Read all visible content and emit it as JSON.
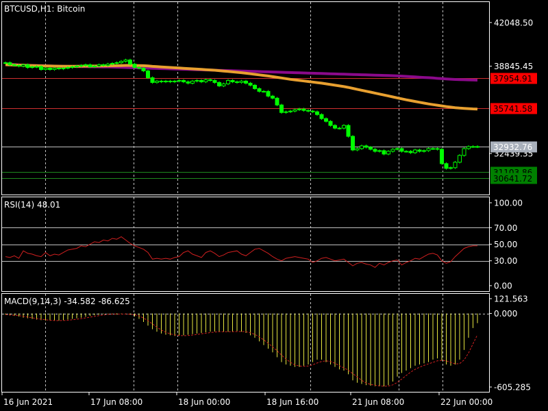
{
  "symbol": {
    "name": "BTCUSD",
    "timeframe": "H1",
    "description": "Bitcoin"
  },
  "colors": {
    "background": "#000000",
    "grid": "#c0c0c0",
    "bull": "#00ff00",
    "bear": "#00ff00",
    "ma_slow": "#8b0a8b",
    "ma_fast": "#e8a030",
    "resistance": "#d03030",
    "support": "#1e8a1e",
    "indicator": "#d02020",
    "macd_hist": "#e6e640",
    "tag_red": "#ff0000",
    "tag_green": "#008000",
    "tag_gray": "#a9b0bb"
  },
  "price_panel": {
    "axis_labels": [
      {
        "value": 42048.5,
        "label": "42048.50"
      },
      {
        "value": 38845.45,
        "label": "38845.45"
      },
      {
        "value": 32439.35,
        "label": "32439.35"
      }
    ],
    "ylim": [
      29430,
      43550
    ],
    "levels": [
      {
        "value": 37954.91,
        "label": "37954.91",
        "kind": "resistance"
      },
      {
        "value": 35741.58,
        "label": "35741.58",
        "kind": "resistance"
      },
      {
        "value": 32932.76,
        "label": "32932.76",
        "kind": "current"
      },
      {
        "value": 31103.86,
        "label": "31103.86",
        "kind": "support"
      },
      {
        "value": 30641.72,
        "label": "30641.72",
        "kind": "support"
      }
    ]
  },
  "rsi_panel": {
    "label": "RSI(14) 48.01",
    "axis_labels": [
      {
        "value": 100,
        "label": "100.00"
      },
      {
        "value": 70,
        "label": "70.00"
      },
      {
        "value": 50,
        "label": "50.00"
      },
      {
        "value": 30,
        "label": "30.00"
      },
      {
        "value": 0,
        "label": "0.00"
      }
    ],
    "levels": [
      70,
      50,
      30
    ]
  },
  "macd_panel": {
    "label": "MACD(9,14,3) -34.582 -86.625",
    "axis_labels": [
      {
        "value": 121.563,
        "label": "121.563"
      },
      {
        "value": 0,
        "label": "0.000"
      },
      {
        "value": -605.285,
        "label": "-605.285"
      }
    ]
  },
  "time_labels": [
    "16 Jun 2021",
    "17 Jun 08:00",
    "18 Jun 00:00",
    "18 Jun 16:00",
    "21 Jun 08:00",
    "22 Jun 00:00"
  ],
  "chart_data": {
    "type": "candlestick",
    "title": "BTCUSD,H1:  Bitcoin",
    "close": [
      39100,
      38950,
      38900,
      38850,
      38950,
      38750,
      38800,
      38820,
      38600,
      38700,
      38600,
      38700,
      38650,
      38700,
      38750,
      38800,
      38850,
      38900,
      38950,
      38800,
      38850,
      38950,
      38900,
      39000,
      39050,
      39100,
      39200,
      39300,
      39000,
      38750,
      38700,
      38500,
      38000,
      37650,
      37750,
      37700,
      37750,
      37700,
      37750,
      37800,
      37700,
      37600,
      37750,
      37800,
      37700,
      37850,
      37800,
      37650,
      37400,
      37550,
      37800,
      37700,
      37650,
      37750,
      37600,
      37450,
      37200,
      37000,
      37000,
      36650,
      36500,
      36000,
      35450,
      35500,
      35550,
      35650,
      35700,
      35600,
      35550,
      35500,
      35300,
      35000,
      34800,
      34500,
      34300,
      34300,
      34500,
      33700,
      32700,
      32800,
      33000,
      32900,
      32750,
      32600,
      32650,
      32400,
      32600,
      32750,
      32800,
      32600,
      32600,
      32500,
      32700,
      32600,
      32650,
      32800,
      32800,
      32750,
      31700,
      31350,
      31400,
      31800,
      32300,
      32800,
      32950,
      32950,
      32930
    ],
    "ma_slow": [
      39000,
      38980,
      38960,
      38940,
      38920,
      38910,
      38900,
      38890,
      38880,
      38870,
      38860,
      38850,
      38840,
      38835,
      38830,
      38825,
      38820,
      38815,
      38810,
      38805,
      38800,
      38795,
      38790,
      38785,
      38780,
      38770,
      38760,
      38750,
      38740,
      38730,
      38720,
      38710,
      38700,
      38690,
      38680,
      38670,
      38660,
      38650,
      38640,
      38630,
      38620,
      38610,
      38600,
      38590,
      38580,
      38570,
      38560,
      38550,
      38540,
      38530,
      38520,
      38510,
      38500,
      38490,
      38480,
      38470,
      38460,
      38450,
      38440,
      38430,
      38420,
      38410,
      38400,
      38390,
      38380,
      38370,
      38360,
      38350,
      38340,
      38330,
      38320,
      38310,
      38300,
      38290,
      38280,
      38270,
      38260,
      38250,
      38240,
      38230,
      38220,
      38210,
      38200,
      38190,
      38180,
      38170,
      38160,
      38150,
      38140,
      38120,
      38100,
      38080,
      38060,
      38040,
      38020,
      38000,
      37980,
      37950,
      37930,
      37910,
      37890,
      37870,
      37860,
      37850,
      37840,
      37830,
      37820
    ],
    "ma_fast": [
      38950,
      38940,
      38930,
      38920,
      38910,
      38900,
      38890,
      38880,
      38870,
      38860,
      38855,
      38850,
      38845,
      38840,
      38840,
      38840,
      38840,
      38845,
      38850,
      38850,
      38855,
      38860,
      38865,
      38870,
      38875,
      38880,
      38890,
      38900,
      38900,
      38895,
      38890,
      38880,
      38860,
      38830,
      38810,
      38790,
      38770,
      38750,
      38730,
      38710,
      38690,
      38670,
      38650,
      38630,
      38610,
      38590,
      38570,
      38550,
      38520,
      38490,
      38460,
      38430,
      38400,
      38370,
      38330,
      38290,
      38250,
      38210,
      38170,
      38130,
      38080,
      38030,
      37980,
      37930,
      37880,
      37840,
      37800,
      37760,
      37720,
      37680,
      37640,
      37600,
      37550,
      37500,
      37450,
      37400,
      37350,
      37290,
      37220,
      37150,
      37080,
      37010,
      36940,
      36870,
      36800,
      36730,
      36660,
      36590,
      36520,
      36450,
      36380,
      36320,
      36260,
      36200,
      36140,
      36080,
      36030,
      35980,
      35930,
      35880,
      35840,
      35800,
      35770,
      35750,
      35730,
      35710,
      35700
    ],
    "rsi": [
      35,
      34,
      36,
      33,
      42,
      39,
      38,
      36,
      35,
      40,
      36,
      38,
      37,
      40,
      43,
      44,
      45,
      48,
      47,
      50,
      53,
      52,
      55,
      54,
      57,
      56,
      59,
      55,
      51,
      48,
      46,
      44,
      40,
      32,
      33,
      32,
      33,
      32,
      34,
      35,
      40,
      42,
      38,
      36,
      34,
      40,
      42,
      39,
      35,
      37,
      40,
      41,
      42,
      38,
      36,
      40,
      44,
      45,
      42,
      39,
      35,
      32,
      30,
      33,
      34,
      35,
      34,
      33,
      32,
      28,
      30,
      33,
      34,
      32,
      30,
      31,
      32,
      28,
      24,
      27,
      28,
      26,
      25,
      22,
      27,
      25,
      28,
      30,
      31,
      25,
      28,
      30,
      33,
      32,
      35,
      38,
      39,
      37,
      30,
      27,
      29,
      35,
      40,
      45,
      47,
      48,
      48
    ],
    "macd_hist": [
      -10,
      -15,
      -20,
      -25,
      -35,
      -40,
      -45,
      -50,
      -55,
      -58,
      -60,
      -60,
      -58,
      -55,
      -50,
      -45,
      -40,
      -35,
      -28,
      -20,
      -15,
      -10,
      -5,
      -3,
      -5,
      -8,
      -5,
      -2,
      -10,
      -25,
      -45,
      -70,
      -100,
      -130,
      -150,
      -165,
      -175,
      -180,
      -185,
      -185,
      -180,
      -175,
      -170,
      -165,
      -160,
      -155,
      -150,
      -148,
      -150,
      -152,
      -150,
      -148,
      -145,
      -150,
      -160,
      -180,
      -200,
      -230,
      -260,
      -290,
      -320,
      -360,
      -400,
      -420,
      -430,
      -440,
      -440,
      -430,
      -420,
      -400,
      -380,
      -380,
      -400,
      -420,
      -440,
      -460,
      -470,
      -500,
      -550,
      -570,
      -580,
      -590,
      -595,
      -598,
      -600,
      -600,
      -590,
      -560,
      -520,
      -490,
      -470,
      -450,
      -430,
      -420,
      -410,
      -400,
      -380,
      -370,
      -390,
      -420,
      -430,
      -420,
      -380,
      -300,
      -200,
      -120,
      -80
    ]
  }
}
